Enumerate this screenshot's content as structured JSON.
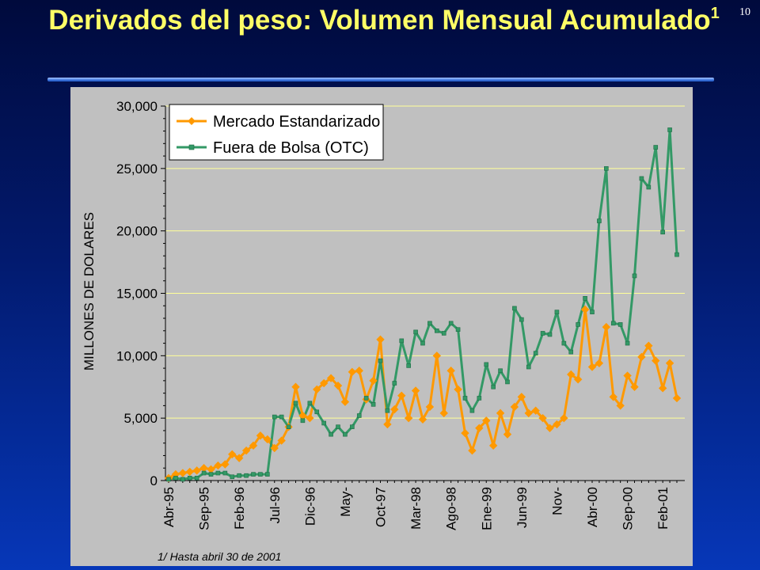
{
  "page_number": "10",
  "title": {
    "text": "Derivados del peso:  Volumen Mensual Acumulado",
    "superscript": "1"
  },
  "footnote": "1/ Hasta abril 30 de 2001",
  "colors": {
    "title": "#ffff66",
    "background": "#021a6e",
    "series_mercado": "#ff9900",
    "series_otc": "#339966",
    "gridline": "#ffff99",
    "panel": "#c0c0c0"
  },
  "chart_data": {
    "type": "line",
    "title": "",
    "xlabel": "",
    "ylabel": "MILLONES DE DOLARES",
    "ylim": [
      0,
      30000
    ],
    "yticks": [
      0,
      5000,
      10000,
      15000,
      20000,
      25000,
      30000
    ],
    "ytick_labels": [
      "0",
      "5,000",
      "10,000",
      "15,000",
      "20,000",
      "25,000",
      "30,000"
    ],
    "grid": true,
    "legend_position": "top-left",
    "x_start": "Abr-95",
    "x_tick_labels": [
      {
        "index": 0,
        "label": "Abr-95"
      },
      {
        "index": 5,
        "label": "Sep-95"
      },
      {
        "index": 10,
        "label": "Feb-96"
      },
      {
        "index": 15,
        "label": "Jul-96"
      },
      {
        "index": 20,
        "label": "Dic-96"
      },
      {
        "index": 25,
        "label": "May-"
      },
      {
        "index": 30,
        "label": "Oct-97"
      },
      {
        "index": 35,
        "label": "Mar-98"
      },
      {
        "index": 40,
        "label": "Ago-98"
      },
      {
        "index": 45,
        "label": "Ene-99"
      },
      {
        "index": 50,
        "label": "Jun-99"
      },
      {
        "index": 55,
        "label": "Nov-"
      },
      {
        "index": 60,
        "label": "Abr-00"
      },
      {
        "index": 65,
        "label": "Sep-00"
      },
      {
        "index": 70,
        "label": "Feb-01"
      }
    ],
    "series": [
      {
        "name": "Mercado Estandarizado",
        "color": "#ff9900",
        "marker": "diamond",
        "values": [
          200,
          500,
          600,
          700,
          800,
          1000,
          900,
          1200,
          1300,
          2100,
          1800,
          2400,
          2800,
          3600,
          3300,
          2600,
          3200,
          4300,
          7500,
          5200,
          5000,
          7300,
          7800,
          8200,
          7600,
          6300,
          8700,
          8800,
          6500,
          8000,
          11300,
          4500,
          5700,
          6800,
          5000,
          7200,
          4900,
          5900,
          10000,
          5400,
          8800,
          7300,
          3800,
          2400,
          4200,
          4800,
          2800,
          5400,
          3700,
          5900,
          6700,
          5400,
          5600,
          5000,
          4200,
          4500,
          5000,
          8500,
          8100,
          13700,
          9100,
          9400,
          12300,
          6700,
          6000,
          8400,
          7500,
          9900,
          10800,
          9600,
          7400,
          9400,
          6600
        ]
      },
      {
        "name": "Fuera de Bolsa (OTC)",
        "color": "#339966",
        "marker": "square",
        "values": [
          100,
          200,
          100,
          200,
          200,
          600,
          500,
          600,
          600,
          300,
          400,
          400,
          500,
          500,
          500,
          5100,
          5100,
          4300,
          6200,
          4800,
          6200,
          5500,
          4600,
          3700,
          4300,
          3700,
          4300,
          5200,
          6600,
          6100,
          9600,
          5600,
          7800,
          11200,
          9200,
          11900,
          11000,
          12600,
          12000,
          11800,
          12600,
          12100,
          6600,
          5600,
          6600,
          9300,
          7500,
          8800,
          7900,
          13800,
          12900,
          9100,
          10200,
          11800,
          11700,
          13500,
          11000,
          10300,
          12500,
          14600,
          13500,
          20800,
          25000,
          12600,
          12500,
          11000,
          16400,
          24200,
          23500,
          26700,
          19900,
          28100,
          18100
        ]
      }
    ]
  }
}
